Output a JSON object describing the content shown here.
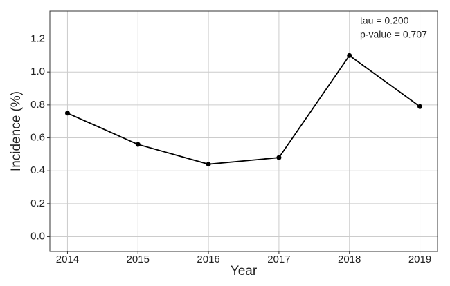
{
  "chart_data": {
    "type": "line",
    "xlabel": "Year",
    "ylabel": "Incidence (%)",
    "x": [
      2014,
      2015,
      2016,
      2017,
      2018,
      2019
    ],
    "series": [
      {
        "color": "#000000",
        "values": [
          0.75,
          0.56,
          0.44,
          0.48,
          1.1,
          0.79
        ]
      }
    ],
    "xlim": [
      2013.75,
      2019.25
    ],
    "xticks": [
      2014,
      2015,
      2016,
      2017,
      2018,
      2019
    ],
    "ylim": [
      -0.09,
      1.37
    ],
    "yticks": [
      {
        "value": 0,
        "label": "0.0"
      },
      0.2,
      0.4,
      0.6,
      0.8,
      {
        "value": 1,
        "label": "1.0"
      },
      1.2
    ],
    "grid": true,
    "annotations": [
      "tau = 0.200",
      "p-value = 0.707"
    ]
  }
}
